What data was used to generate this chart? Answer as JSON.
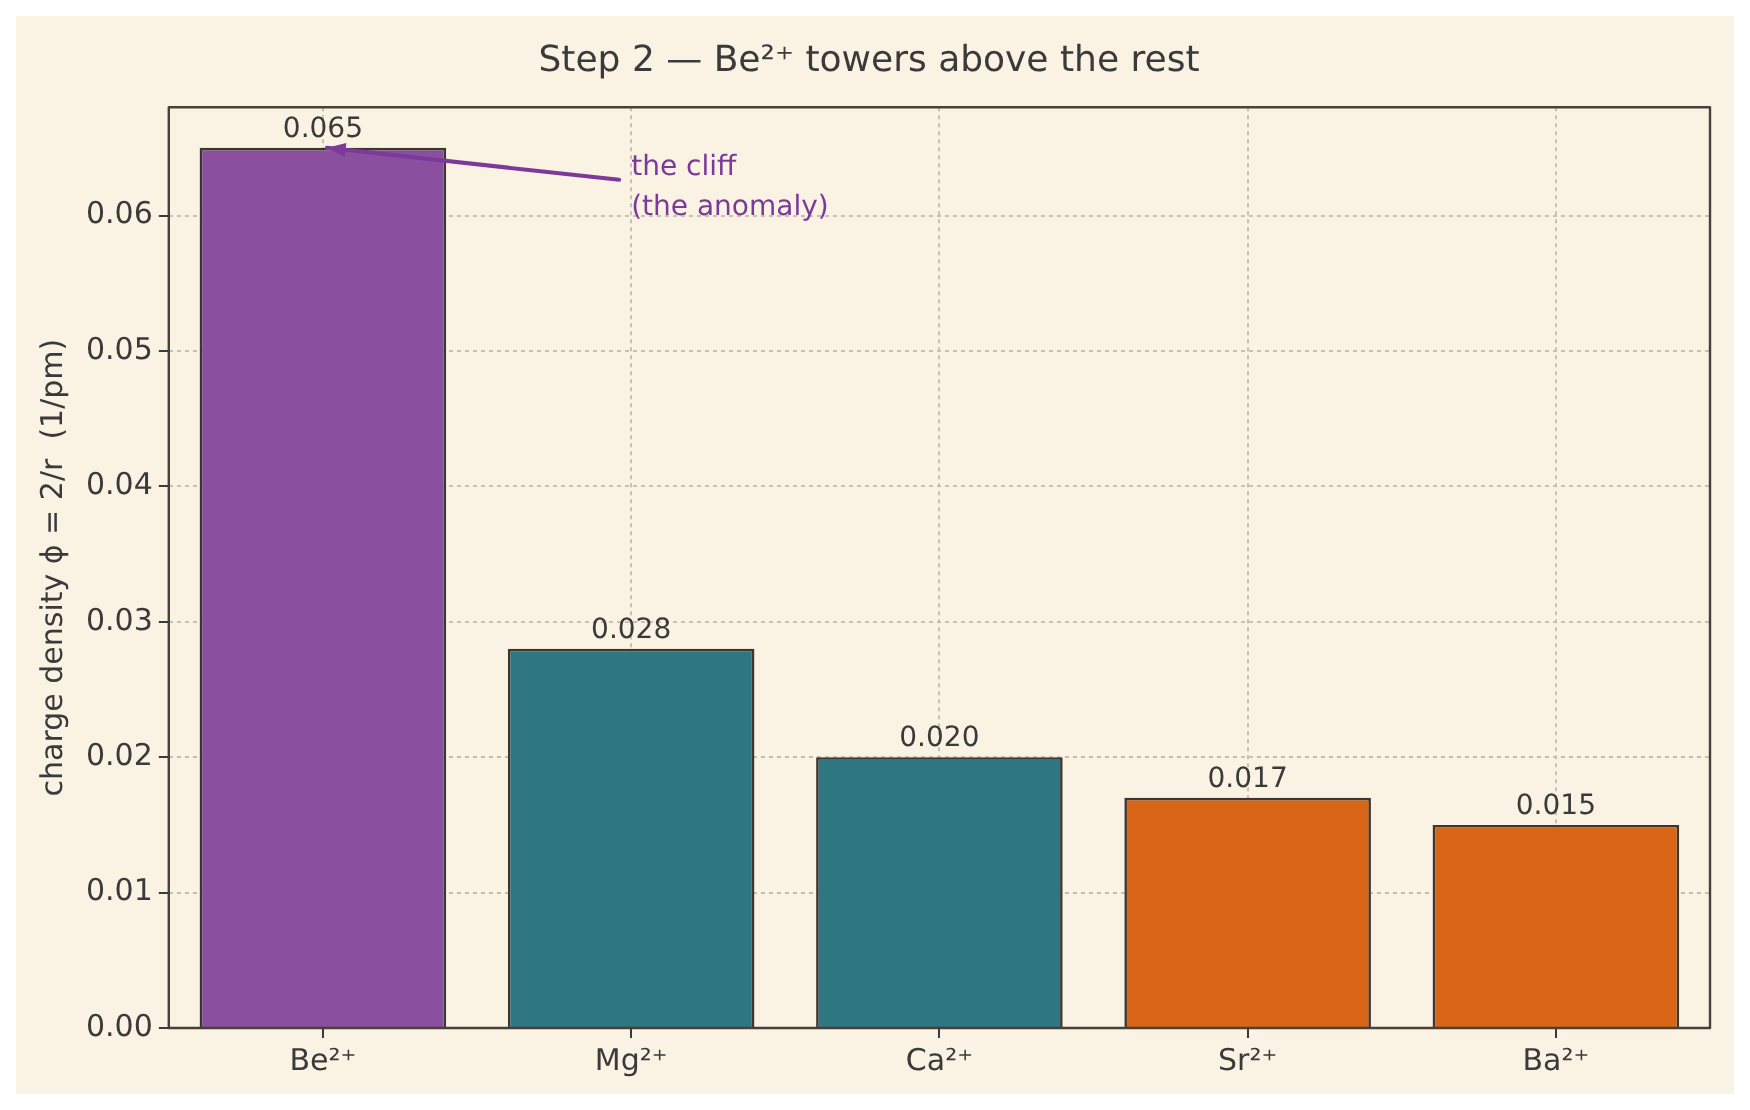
{
  "chart_data": {
    "type": "bar",
    "title": "Step 2 — Be²⁺ towers above the rest",
    "ylabel": "charge density ϕ = 2/r  (1/pm)",
    "categories": [
      "Be²⁺",
      "Mg²⁺",
      "Ca²⁺",
      "Sr²⁺",
      "Ba²⁺"
    ],
    "values": [
      0.065,
      0.028,
      0.02,
      0.017,
      0.015
    ],
    "value_labels": [
      "0.065",
      "0.028",
      "0.020",
      "0.017",
      "0.015"
    ],
    "colors": [
      "#8a4f9e",
      "#2e7681",
      "#2e7681",
      "#d96516",
      "#d96516"
    ],
    "ylim": [
      0,
      0.068
    ],
    "yticks": [
      {
        "value": 0,
        "label": "0.00"
      },
      {
        "value": 0.01,
        "label": "0.01"
      },
      {
        "value": 0.02,
        "label": "0.02"
      },
      {
        "value": 0.03,
        "label": "0.03"
      },
      {
        "value": 0.04,
        "label": "0.04"
      },
      {
        "value": 0.05,
        "label": "0.05"
      },
      {
        "value": 0.06,
        "label": "0.06"
      }
    ],
    "annotations": [
      {
        "text": "the cliff\n(the anomaly)",
        "x": "Be²⁺",
        "y": 0.065
      }
    ],
    "grid": true,
    "legend": false
  }
}
